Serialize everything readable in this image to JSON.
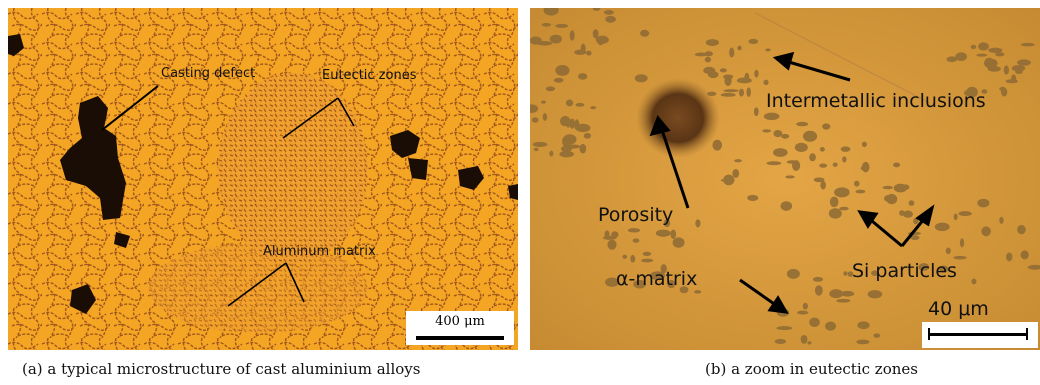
{
  "panel_a": {
    "labels": {
      "casting_defect": "Casting defect",
      "eutectic_zones": "Eutectic zones",
      "aluminum_matrix": "Aluminum matrix"
    },
    "scale_bar": "400 μm",
    "caption": "(a)  a typical microstructure of cast aluminium alloys"
  },
  "panel_b": {
    "labels": {
      "intermetallic_inclusions": "Intermetallic inclusions",
      "porosity": "Porosity",
      "alpha_matrix": "α-matrix",
      "si_particles": "Si particles"
    },
    "scale_bar": "40 μm",
    "caption": "(b)  a zoom in eutectic zones"
  },
  "colors": {
    "matrix_a": "#f4a524",
    "boundary_a": "#a0561c",
    "defect": "#1a0d05",
    "matrix_b": "#d79a3a",
    "particle_b": "#8e6a34"
  }
}
